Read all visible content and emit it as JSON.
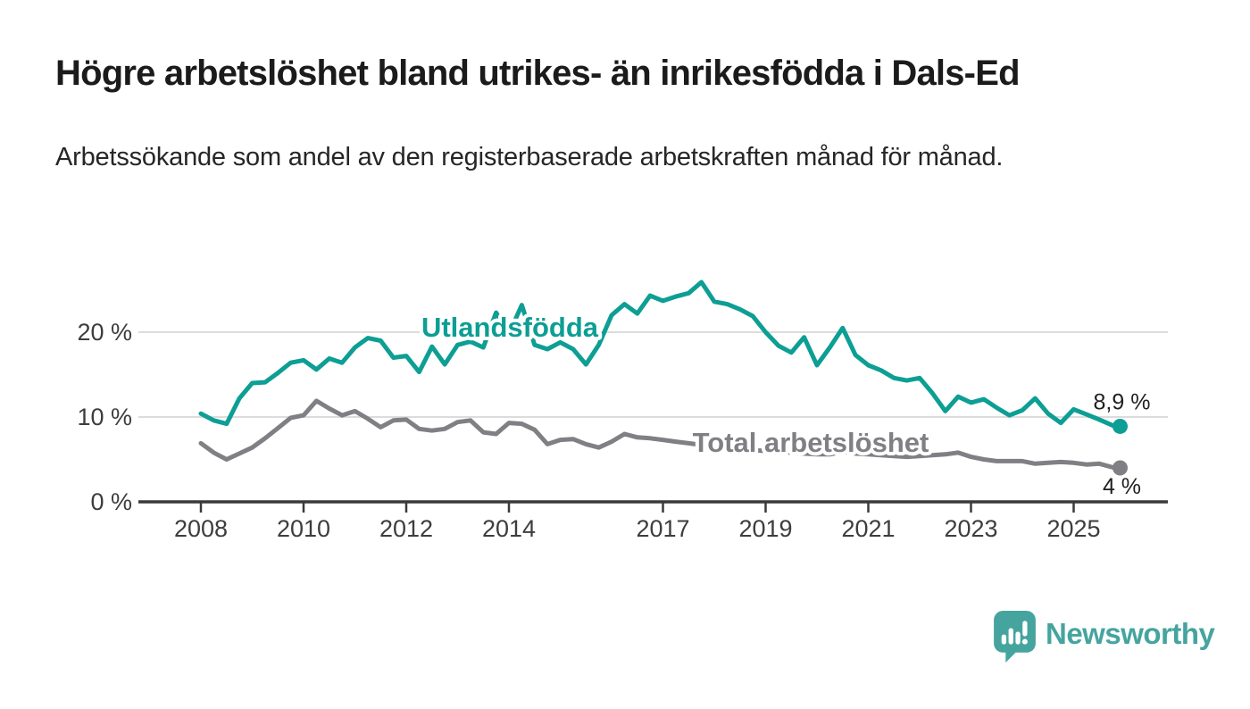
{
  "header": {
    "title": "Högre arbetslöshet bland utrikes- än inrikesfödda i Dals-Ed",
    "subtitle": "Arbetssökande som andel av den registerbaserade arbetskraften månad för månad."
  },
  "footer": {
    "brand": "Newsworthy",
    "brand_color": "#46a49f",
    "logo_icon": "speech-bubble-bar-chart-icon"
  },
  "colors": {
    "foreign_born_line": "#0d9e94",
    "total_line": "#7f7f84",
    "axis": "#3a3a3a",
    "grid": "#dcdcdc",
    "text": "#1f1f1f"
  },
  "chart_data": {
    "type": "line",
    "title": "Högre arbetslöshet bland utrikes- än inrikesfödda i Dals-Ed",
    "subtitle": "Arbetssökande som andel av den registerbaserade arbetskraften månad för månad.",
    "xlabel": "",
    "ylabel": "",
    "x_unit": "decimal_year",
    "xlim": [
      2007.8,
      2026.8
    ],
    "ylim": [
      0,
      27.5
    ],
    "grid": "horizontal",
    "legend_position": "inline-labels",
    "y_ticks": [
      {
        "value": 0,
        "label": "0 %"
      },
      {
        "value": 10,
        "label": "10 %"
      },
      {
        "value": 20,
        "label": "20 %"
      }
    ],
    "x_ticks": [
      {
        "value": 2008,
        "label": "2008"
      },
      {
        "value": 2010,
        "label": "2010"
      },
      {
        "value": 2012,
        "label": "2012"
      },
      {
        "value": 2014,
        "label": "2014"
      },
      {
        "value": 2017,
        "label": "2017"
      },
      {
        "value": 2019,
        "label": "2019"
      },
      {
        "value": 2021,
        "label": "2021"
      },
      {
        "value": 2023,
        "label": "2023"
      },
      {
        "value": 2025,
        "label": "2025"
      }
    ],
    "x": [
      2008.0,
      2008.25,
      2008.5,
      2008.75,
      2009.0,
      2009.25,
      2009.5,
      2009.75,
      2010.0,
      2010.25,
      2010.5,
      2010.75,
      2011.0,
      2011.25,
      2011.5,
      2011.75,
      2012.0,
      2012.25,
      2012.5,
      2012.75,
      2013.0,
      2013.25,
      2013.5,
      2013.75,
      2014.0,
      2014.25,
      2014.5,
      2014.75,
      2015.0,
      2015.25,
      2015.5,
      2015.75,
      2016.0,
      2016.25,
      2016.5,
      2016.75,
      2017.0,
      2017.25,
      2017.5,
      2017.75,
      2018.0,
      2018.25,
      2018.5,
      2018.75,
      2019.0,
      2019.25,
      2019.5,
      2019.75,
      2020.0,
      2020.25,
      2020.5,
      2020.75,
      2021.0,
      2021.25,
      2021.5,
      2021.75,
      2022.0,
      2022.25,
      2022.5,
      2022.75,
      2023.0,
      2023.25,
      2023.5,
      2023.75,
      2024.0,
      2024.25,
      2024.5,
      2024.75,
      2025.0,
      2025.25,
      2025.5,
      2025.8
    ],
    "series": [
      {
        "name": "Utlandsfödda",
        "color": "#0d9e94",
        "end_value": 8.9,
        "end_label": "8,9 %",
        "values": [
          10.4,
          9.6,
          9.2,
          12.2,
          14.0,
          14.1,
          15.2,
          16.4,
          16.7,
          15.6,
          16.9,
          16.4,
          18.2,
          19.3,
          19.0,
          17.0,
          17.2,
          15.3,
          18.3,
          16.2,
          18.5,
          18.9,
          18.2,
          22.3,
          19.8,
          23.2,
          18.5,
          18.0,
          18.8,
          18.0,
          16.2,
          18.5,
          22.0,
          23.3,
          22.2,
          24.3,
          23.7,
          24.2,
          24.6,
          25.9,
          23.6,
          23.3,
          22.7,
          21.9,
          20.0,
          18.4,
          17.6,
          19.4,
          16.1,
          18.2,
          20.5,
          17.3,
          16.1,
          15.5,
          14.6,
          14.3,
          14.6,
          12.8,
          10.7,
          12.4,
          11.7,
          12.1,
          11.1,
          10.2,
          10.8,
          12.2,
          10.4,
          9.3,
          10.9,
          10.3,
          9.7,
          8.9
        ]
      },
      {
        "name": "Total arbetslöshet",
        "color": "#7f7f84",
        "end_value": 4,
        "end_label": "4 %",
        "values": [
          6.9,
          5.8,
          5.0,
          5.7,
          6.4,
          7.5,
          8.7,
          9.9,
          10.2,
          11.9,
          11.0,
          10.2,
          10.7,
          9.8,
          8.8,
          9.6,
          9.7,
          8.6,
          8.4,
          8.6,
          9.4,
          9.6,
          8.2,
          8.0,
          9.3,
          9.2,
          8.5,
          6.8,
          7.3,
          7.4,
          6.8,
          6.4,
          7.1,
          8.0,
          7.6,
          7.5,
          7.3,
          7.1,
          6.9,
          6.7,
          6.5,
          6.4,
          6.2,
          6.1,
          6.0,
          5.9,
          5.8,
          5.7,
          5.6,
          5.6,
          5.9,
          5.7,
          5.6,
          5.5,
          5.4,
          5.3,
          5.4,
          5.5,
          5.6,
          5.8,
          5.3,
          5.0,
          4.8,
          4.8,
          4.8,
          4.5,
          4.6,
          4.7,
          4.6,
          4.4,
          4.5,
          4.0
        ]
      }
    ]
  }
}
